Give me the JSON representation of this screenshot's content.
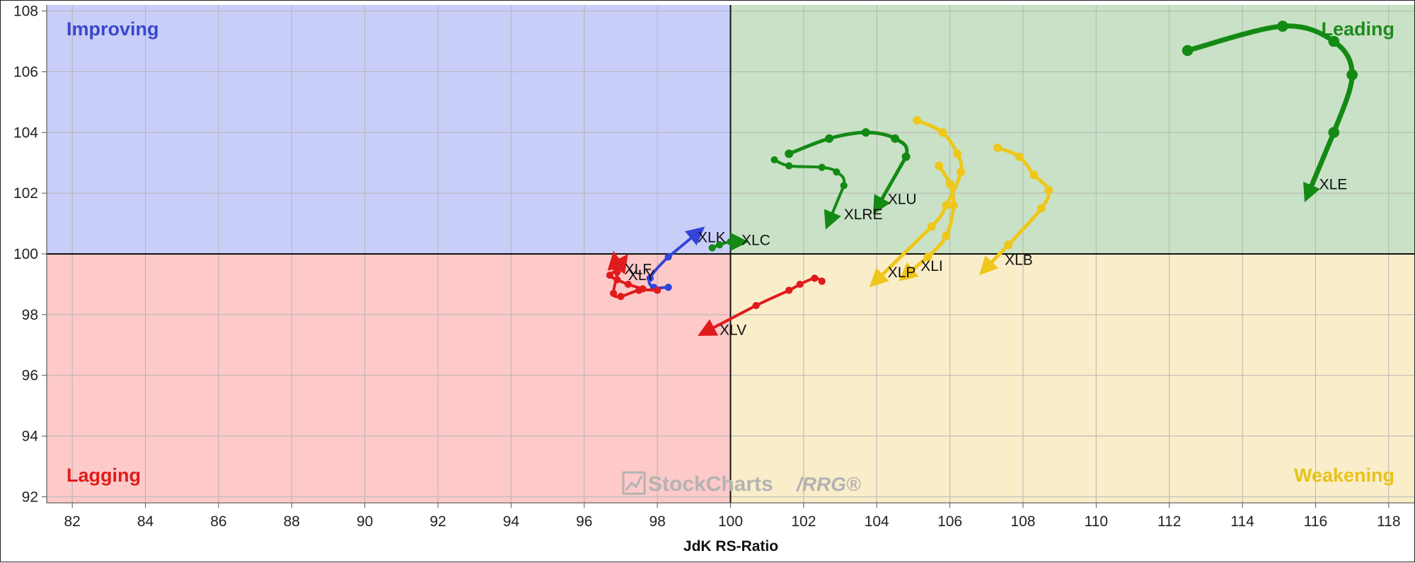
{
  "chart_data": {
    "type": "scatter",
    "title": "",
    "xlabel": "JdK RS-Ratio",
    "ylabel": "",
    "xlim": [
      81.3,
      118.7
    ],
    "ylim": [
      91.8,
      108.2
    ],
    "center": [
      100,
      100
    ],
    "grid": true,
    "x_ticks": [
      82,
      84,
      86,
      88,
      90,
      92,
      94,
      96,
      98,
      100,
      102,
      104,
      106,
      108,
      110,
      112,
      114,
      116,
      118
    ],
    "y_ticks": [
      92,
      94,
      96,
      98,
      100,
      102,
      104,
      106,
      108
    ],
    "quadrants": {
      "improving": {
        "label": "Improving",
        "fill": "#c9cef8",
        "text_color": "#3a46cc"
      },
      "leading": {
        "label": "Leading",
        "fill": "#c9e1c6",
        "text_color": "#1f8a1f"
      },
      "lagging": {
        "label": "Lagging",
        "fill": "#fdc9c9",
        "text_color": "#e01b1b"
      },
      "weakening": {
        "label": "Weakening",
        "fill": "#faedc9",
        "text_color": "#e8c21b"
      }
    },
    "series": [
      {
        "name": "XLE",
        "color": "#138a13",
        "width": 7,
        "points": [
          [
            112.5,
            106.7
          ],
          [
            115.1,
            107.5
          ],
          [
            116.5,
            107.0
          ],
          [
            117.0,
            105.9
          ],
          [
            116.5,
            104.0
          ],
          [
            115.7,
            101.7
          ]
        ],
        "label_pos": [
          116.1,
          102.3
        ]
      },
      {
        "name": "XLU",
        "color": "#138a13",
        "width": 5,
        "points": [
          [
            101.6,
            103.3
          ],
          [
            102.7,
            103.8
          ],
          [
            103.7,
            104.0
          ],
          [
            104.5,
            103.8
          ],
          [
            104.8,
            103.2
          ],
          [
            103.9,
            101.3
          ]
        ],
        "label_pos": [
          104.3,
          101.8
        ]
      },
      {
        "name": "XLRE",
        "color": "#138a13",
        "width": 4,
        "points": [
          [
            101.2,
            103.1
          ],
          [
            101.6,
            102.9
          ],
          [
            102.5,
            102.85
          ],
          [
            102.9,
            102.7
          ],
          [
            103.1,
            102.25
          ],
          [
            102.6,
            100.8
          ]
        ],
        "label_pos": [
          103.1,
          101.3
        ]
      },
      {
        "name": "XLC",
        "color": "#138a13",
        "width": 4,
        "points": [
          [
            99.5,
            100.2
          ],
          [
            99.7,
            100.3
          ],
          [
            100.0,
            100.4
          ],
          [
            100.5,
            100.4
          ]
        ],
        "label_pos": [
          100.3,
          100.45
        ]
      },
      {
        "name": "XLK",
        "color": "#3344d8",
        "width": 4,
        "points": [
          [
            98.3,
            98.9
          ],
          [
            97.9,
            98.9
          ],
          [
            97.8,
            99.2
          ],
          [
            98.3,
            99.9
          ],
          [
            99.3,
            100.9
          ]
        ],
        "label_pos": [
          99.1,
          100.55
        ]
      },
      {
        "name": "XLV",
        "color": "#e01b1b",
        "width": 4,
        "points": [
          [
            102.5,
            99.1
          ],
          [
            102.3,
            99.2
          ],
          [
            101.9,
            99.0
          ],
          [
            101.6,
            98.8
          ],
          [
            100.7,
            98.3
          ],
          [
            99.1,
            97.3
          ]
        ],
        "label_pos": [
          99.7,
          97.5
        ]
      },
      {
        "name": "XLF",
        "color": "#e01b1b",
        "width": 4,
        "points": [
          [
            98.0,
            98.8
          ],
          [
            97.5,
            98.8
          ],
          [
            97.0,
            98.6
          ],
          [
            96.8,
            98.7
          ],
          [
            96.9,
            99.4
          ],
          [
            96.8,
            100.1
          ]
        ],
        "label_pos": [
          97.1,
          99.5
        ]
      },
      {
        "name": "XLY",
        "color": "#e01b1b",
        "width": 4,
        "points": [
          [
            97.6,
            98.85
          ],
          [
            97.2,
            99.0
          ],
          [
            96.9,
            99.15
          ],
          [
            96.7,
            99.3
          ],
          [
            96.9,
            99.5
          ],
          [
            97.2,
            100.0
          ]
        ],
        "label_pos": [
          97.2,
          99.3
        ]
      },
      {
        "name": "XLP",
        "color": "#efc71a",
        "width": 5,
        "points": [
          [
            105.1,
            104.4
          ],
          [
            105.8,
            104.0
          ],
          [
            106.2,
            103.3
          ],
          [
            106.3,
            102.7
          ],
          [
            105.9,
            101.6
          ],
          [
            105.5,
            100.9
          ],
          [
            103.8,
            98.9
          ]
        ],
        "label_pos": [
          104.3,
          99.4
        ]
      },
      {
        "name": "XLI",
        "color": "#efc71a",
        "width": 5,
        "points": [
          [
            105.7,
            102.9
          ],
          [
            106.0,
            102.3
          ],
          [
            106.1,
            101.6
          ],
          [
            105.9,
            100.6
          ],
          [
            105.4,
            99.9
          ],
          [
            104.6,
            99.1
          ]
        ],
        "label_pos": [
          105.2,
          99.6
        ]
      },
      {
        "name": "XLB",
        "color": "#efc71a",
        "width": 5,
        "points": [
          [
            107.3,
            103.5
          ],
          [
            107.9,
            103.2
          ],
          [
            108.3,
            102.6
          ],
          [
            108.7,
            102.1
          ],
          [
            108.5,
            101.5
          ],
          [
            107.6,
            100.3
          ],
          [
            106.8,
            99.3
          ]
        ],
        "label_pos": [
          107.5,
          99.8
        ]
      }
    ],
    "watermark": {
      "brand": "StockCharts",
      "product": "/RRG®"
    }
  }
}
